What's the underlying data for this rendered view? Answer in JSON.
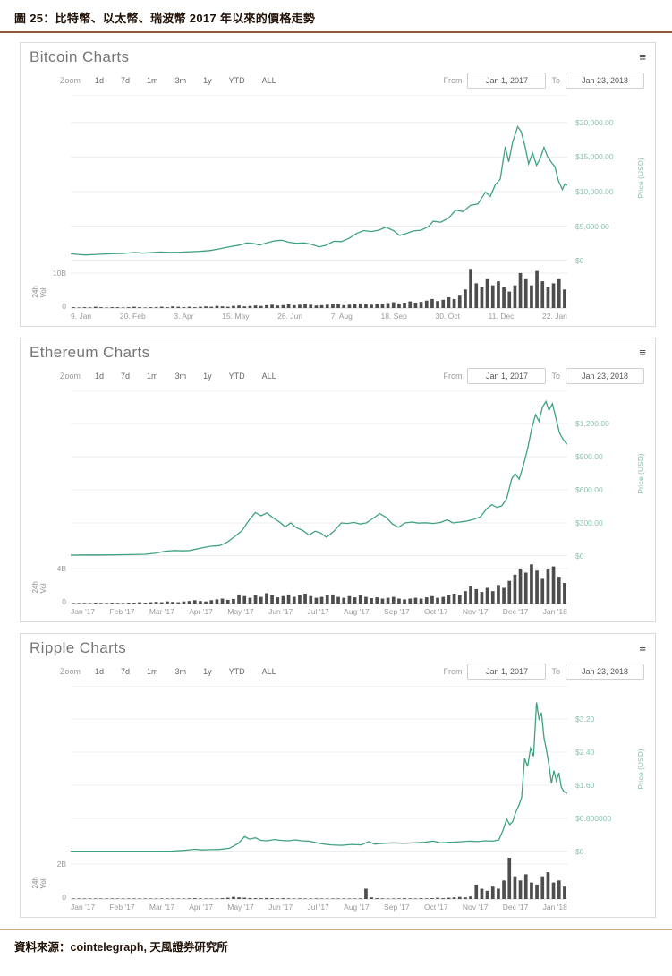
{
  "page": {
    "title": "圖 25：比特幣、以太幣、瑞波幣 2017 年以來的價格走勢",
    "source": "資料來源：cointelegraph, 天風證券研究所"
  },
  "toolbar": {
    "zoom_label": "Zoom",
    "zoom_buttons": [
      "1d",
      "7d",
      "1m",
      "3m",
      "1y",
      "YTD",
      "ALL"
    ],
    "from_label": "From",
    "to_label": "To",
    "from_value": "Jan 1, 2017",
    "to_value": "Jan 23, 2018",
    "menu_icon": "≡"
  },
  "colors": {
    "line": "#3fa184",
    "axis_label": "#8ac2ad",
    "volume_bar": "#4d4d4d",
    "grid": "#ececec",
    "baseline": "#d8d8d8"
  },
  "chart_data": [
    {
      "type": "line",
      "title": "Bitcoin Charts",
      "ylabel": "Price (USD)",
      "vol_label": "24h Vol",
      "x_range": [
        "Jan 1, 2017",
        "Jan 23, 2018"
      ],
      "y_axis_max": 24000,
      "y_ticks": [
        {
          "label": "$20,000.00",
          "value": 20000
        },
        {
          "label": "$15,000.00",
          "value": 15000
        },
        {
          "label": "$10,000.00",
          "value": 10000
        },
        {
          "label": "$5,000.00",
          "value": 5000
        },
        {
          "label": "$0",
          "value": 0
        }
      ],
      "x_labels": [
        "9. Jan",
        "20. Feb",
        "3. Apr",
        "15. May",
        "26. Jun",
        "7. Aug",
        "18. Sep",
        "30. Oct",
        "11. Dec",
        "22. Jan"
      ],
      "price_points": [
        [
          0,
          1000
        ],
        [
          0.015,
          900
        ],
        [
          0.03,
          820
        ],
        [
          0.05,
          900
        ],
        [
          0.07,
          960
        ],
        [
          0.09,
          1010
        ],
        [
          0.11,
          1060
        ],
        [
          0.13,
          1180
        ],
        [
          0.145,
          1080
        ],
        [
          0.16,
          1150
        ],
        [
          0.18,
          1250
        ],
        [
          0.2,
          1180
        ],
        [
          0.22,
          1210
        ],
        [
          0.24,
          1280
        ],
        [
          0.26,
          1330
        ],
        [
          0.28,
          1450
        ],
        [
          0.3,
          1700
        ],
        [
          0.32,
          2000
        ],
        [
          0.34,
          2250
        ],
        [
          0.355,
          2550
        ],
        [
          0.37,
          2450
        ],
        [
          0.38,
          2250
        ],
        [
          0.395,
          2550
        ],
        [
          0.41,
          2850
        ],
        [
          0.425,
          2950
        ],
        [
          0.44,
          2650
        ],
        [
          0.455,
          2500
        ],
        [
          0.47,
          2550
        ],
        [
          0.485,
          2350
        ],
        [
          0.5,
          1980
        ],
        [
          0.515,
          2250
        ],
        [
          0.53,
          2800
        ],
        [
          0.545,
          2750
        ],
        [
          0.56,
          3200
        ],
        [
          0.575,
          3900
        ],
        [
          0.59,
          4350
        ],
        [
          0.605,
          4200
        ],
        [
          0.62,
          4400
        ],
        [
          0.635,
          4850
        ],
        [
          0.65,
          4350
        ],
        [
          0.662,
          3650
        ],
        [
          0.675,
          3900
        ],
        [
          0.69,
          4300
        ],
        [
          0.705,
          4400
        ],
        [
          0.72,
          4900
        ],
        [
          0.73,
          5700
        ],
        [
          0.745,
          5550
        ],
        [
          0.76,
          6100
        ],
        [
          0.775,
          7300
        ],
        [
          0.79,
          7100
        ],
        [
          0.805,
          8000
        ],
        [
          0.82,
          8200
        ],
        [
          0.835,
          9900
        ],
        [
          0.845,
          9300
        ],
        [
          0.855,
          11000
        ],
        [
          0.865,
          11800
        ],
        [
          0.875,
          16500
        ],
        [
          0.882,
          14300
        ],
        [
          0.89,
          17200
        ],
        [
          0.9,
          19400
        ],
        [
          0.907,
          18700
        ],
        [
          0.915,
          16500
        ],
        [
          0.922,
          14000
        ],
        [
          0.93,
          15600
        ],
        [
          0.938,
          13800
        ],
        [
          0.945,
          14700
        ],
        [
          0.953,
          16400
        ],
        [
          0.96,
          15100
        ],
        [
          0.968,
          14200
        ],
        [
          0.975,
          13600
        ],
        [
          0.982,
          11600
        ],
        [
          0.99,
          10300
        ],
        [
          0.995,
          11100
        ],
        [
          1,
          10900
        ]
      ],
      "volume_axis": {
        "tick_label": "10B",
        "zero_label": "0"
      },
      "volume_values": [
        0.02,
        0.01,
        0.02,
        0.015,
        0.03,
        0.02,
        0.01,
        0.02,
        0.02,
        0.01,
        0.02,
        0.03,
        0.02,
        0.01,
        0.02,
        0.02,
        0.03,
        0.02,
        0.04,
        0.03,
        0.02,
        0.03,
        0.02,
        0.03,
        0.04,
        0.03,
        0.05,
        0.04,
        0.03,
        0.05,
        0.06,
        0.04,
        0.05,
        0.06,
        0.05,
        0.07,
        0.08,
        0.06,
        0.07,
        0.09,
        0.07,
        0.08,
        0.1,
        0.08,
        0.06,
        0.07,
        0.08,
        0.1,
        0.09,
        0.07,
        0.08,
        0.09,
        0.11,
        0.09,
        0.08,
        0.1,
        0.1,
        0.12,
        0.14,
        0.11,
        0.13,
        0.16,
        0.13,
        0.15,
        0.18,
        0.22,
        0.17,
        0.2,
        0.26,
        0.22,
        0.3,
        0.45,
        0.95,
        0.6,
        0.5,
        0.7,
        0.55,
        0.65,
        0.5,
        0.4,
        0.55,
        0.85,
        0.7,
        0.55,
        0.9,
        0.65,
        0.5,
        0.6,
        0.7,
        0.45
      ]
    },
    {
      "type": "line",
      "title": "Ethereum Charts",
      "ylabel": "Price (USD)",
      "vol_label": "24h Vol",
      "x_range": [
        "Jan 1, 2017",
        "Jan 23, 2018"
      ],
      "y_axis_max": 1500,
      "y_ticks": [
        {
          "label": "$1,200.00",
          "value": 1200
        },
        {
          "label": "$900.00",
          "value": 900
        },
        {
          "label": "$600.00",
          "value": 600
        },
        {
          "label": "$300.00",
          "value": 300
        },
        {
          "label": "$0",
          "value": 0
        }
      ],
      "x_labels": [
        "Jan '17",
        "Feb '17",
        "Mar '17",
        "Apr '17",
        "May '17",
        "Jun '17",
        "Jul '17",
        "Aug '17",
        "Sep '17",
        "Oct '17",
        "Nov '17",
        "Dec '17",
        "Jan '18"
      ],
      "price_points": [
        [
          0,
          8
        ],
        [
          0.03,
          10
        ],
        [
          0.06,
          10
        ],
        [
          0.09,
          11
        ],
        [
          0.12,
          13
        ],
        [
          0.15,
          16
        ],
        [
          0.17,
          25
        ],
        [
          0.19,
          44
        ],
        [
          0.21,
          50
        ],
        [
          0.225,
          47
        ],
        [
          0.24,
          50
        ],
        [
          0.26,
          70
        ],
        [
          0.28,
          88
        ],
        [
          0.3,
          95
        ],
        [
          0.315,
          125
        ],
        [
          0.33,
          175
        ],
        [
          0.345,
          230
        ],
        [
          0.36,
          330
        ],
        [
          0.372,
          395
        ],
        [
          0.383,
          365
        ],
        [
          0.395,
          390
        ],
        [
          0.408,
          345
        ],
        [
          0.42,
          310
        ],
        [
          0.432,
          265
        ],
        [
          0.443,
          300
        ],
        [
          0.455,
          255
        ],
        [
          0.468,
          230
        ],
        [
          0.48,
          190
        ],
        [
          0.492,
          225
        ],
        [
          0.503,
          210
        ],
        [
          0.515,
          170
        ],
        [
          0.53,
          225
        ],
        [
          0.545,
          300
        ],
        [
          0.558,
          295
        ],
        [
          0.57,
          305
        ],
        [
          0.583,
          290
        ],
        [
          0.595,
          300
        ],
        [
          0.61,
          345
        ],
        [
          0.622,
          385
        ],
        [
          0.635,
          350
        ],
        [
          0.648,
          290
        ],
        [
          0.66,
          260
        ],
        [
          0.673,
          300
        ],
        [
          0.688,
          308
        ],
        [
          0.7,
          298
        ],
        [
          0.715,
          302
        ],
        [
          0.73,
          295
        ],
        [
          0.745,
          305
        ],
        [
          0.758,
          328
        ],
        [
          0.77,
          300
        ],
        [
          0.783,
          308
        ],
        [
          0.795,
          315
        ],
        [
          0.81,
          330
        ],
        [
          0.825,
          355
        ],
        [
          0.838,
          430
        ],
        [
          0.848,
          465
        ],
        [
          0.858,
          440
        ],
        [
          0.868,
          455
        ],
        [
          0.878,
          520
        ],
        [
          0.888,
          700
        ],
        [
          0.895,
          745
        ],
        [
          0.903,
          695
        ],
        [
          0.912,
          830
        ],
        [
          0.92,
          970
        ],
        [
          0.928,
          1150
        ],
        [
          0.936,
          1280
        ],
        [
          0.943,
          1220
        ],
        [
          0.95,
          1350
        ],
        [
          0.957,
          1400
        ],
        [
          0.963,
          1320
        ],
        [
          0.97,
          1380
        ],
        [
          0.977,
          1250
        ],
        [
          0.984,
          1120
        ],
        [
          0.991,
          1060
        ],
        [
          1,
          1010
        ]
      ],
      "volume_axis": {
        "tick_label": "4B",
        "zero_label": "0"
      },
      "volume_values": [
        0.01,
        0.01,
        0.015,
        0.01,
        0.02,
        0.015,
        0.01,
        0.02,
        0.015,
        0.01,
        0.02,
        0.02,
        0.03,
        0.02,
        0.03,
        0.04,
        0.03,
        0.05,
        0.04,
        0.03,
        0.05,
        0.06,
        0.08,
        0.06,
        0.05,
        0.08,
        0.1,
        0.12,
        0.09,
        0.11,
        0.22,
        0.18,
        0.14,
        0.2,
        0.16,
        0.25,
        0.2,
        0.15,
        0.18,
        0.22,
        0.16,
        0.2,
        0.24,
        0.18,
        0.14,
        0.16,
        0.2,
        0.22,
        0.16,
        0.14,
        0.18,
        0.15,
        0.2,
        0.16,
        0.13,
        0.15,
        0.12,
        0.14,
        0.16,
        0.12,
        0.1,
        0.12,
        0.14,
        0.12,
        0.15,
        0.18,
        0.14,
        0.16,
        0.2,
        0.24,
        0.2,
        0.3,
        0.42,
        0.35,
        0.28,
        0.38,
        0.3,
        0.45,
        0.38,
        0.55,
        0.7,
        0.85,
        0.75,
        0.95,
        0.8,
        0.6,
        0.85,
        0.9,
        0.65,
        0.5
      ]
    },
    {
      "type": "line",
      "title": "Ripple Charts",
      "ylabel": "Price (USD)",
      "vol_label": "24h Vol",
      "x_range": [
        "Jan 1, 2017",
        "Jan 23, 2018"
      ],
      "y_axis_max": 4.0,
      "y_ticks": [
        {
          "label": "$3.20",
          "value": 3.2
        },
        {
          "label": "$2.40",
          "value": 2.4
        },
        {
          "label": "$1.60",
          "value": 1.6
        },
        {
          "label": "$0.800000",
          "value": 0.8
        },
        {
          "label": "$0",
          "value": 0
        }
      ],
      "x_labels": [
        "Jan '17",
        "Feb '17",
        "Mar '17",
        "Apr '17",
        "May '17",
        "Jun '17",
        "Jul '17",
        "Aug '17",
        "Sep '17",
        "Oct '17",
        "Nov '17",
        "Dec '17",
        "Jan '18"
      ],
      "price_points": [
        [
          0,
          0.006
        ],
        [
          0.05,
          0.006
        ],
        [
          0.1,
          0.006
        ],
        [
          0.15,
          0.007
        ],
        [
          0.2,
          0.008
        ],
        [
          0.23,
          0.03
        ],
        [
          0.25,
          0.055
        ],
        [
          0.265,
          0.04
        ],
        [
          0.28,
          0.045
        ],
        [
          0.3,
          0.05
        ],
        [
          0.32,
          0.08
        ],
        [
          0.338,
          0.2
        ],
        [
          0.35,
          0.36
        ],
        [
          0.36,
          0.3
        ],
        [
          0.372,
          0.33
        ],
        [
          0.383,
          0.27
        ],
        [
          0.395,
          0.26
        ],
        [
          0.41,
          0.29
        ],
        [
          0.423,
          0.27
        ],
        [
          0.438,
          0.26
        ],
        [
          0.452,
          0.28
        ],
        [
          0.465,
          0.26
        ],
        [
          0.48,
          0.25
        ],
        [
          0.495,
          0.21
        ],
        [
          0.51,
          0.18
        ],
        [
          0.525,
          0.16
        ],
        [
          0.545,
          0.15
        ],
        [
          0.565,
          0.17
        ],
        [
          0.585,
          0.16
        ],
        [
          0.6,
          0.24
        ],
        [
          0.612,
          0.18
        ],
        [
          0.63,
          0.2
        ],
        [
          0.65,
          0.21
        ],
        [
          0.67,
          0.2
        ],
        [
          0.69,
          0.21
        ],
        [
          0.71,
          0.22
        ],
        [
          0.73,
          0.25
        ],
        [
          0.745,
          0.21
        ],
        [
          0.76,
          0.22
        ],
        [
          0.775,
          0.23
        ],
        [
          0.79,
          0.24
        ],
        [
          0.805,
          0.25
        ],
        [
          0.82,
          0.24
        ],
        [
          0.835,
          0.26
        ],
        [
          0.85,
          0.25
        ],
        [
          0.862,
          0.28
        ],
        [
          0.87,
          0.5
        ],
        [
          0.878,
          0.78
        ],
        [
          0.884,
          0.65
        ],
        [
          0.89,
          0.72
        ],
        [
          0.896,
          0.95
        ],
        [
          0.902,
          1.1
        ],
        [
          0.908,
          1.3
        ],
        [
          0.914,
          2.25
        ],
        [
          0.92,
          2.05
        ],
        [
          0.926,
          2.5
        ],
        [
          0.932,
          2.3
        ],
        [
          0.938,
          3.6
        ],
        [
          0.943,
          3.2
        ],
        [
          0.948,
          3.35
        ],
        [
          0.953,
          2.75
        ],
        [
          0.958,
          2.45
        ],
        [
          0.963,
          2.1
        ],
        [
          0.968,
          1.65
        ],
        [
          0.973,
          1.95
        ],
        [
          0.978,
          1.7
        ],
        [
          0.983,
          1.9
        ],
        [
          0.988,
          1.55
        ],
        [
          0.993,
          1.45
        ],
        [
          1,
          1.4
        ]
      ],
      "volume_axis": {
        "tick_label": "2B",
        "zero_label": "0"
      },
      "volume_values": [
        0.005,
        0.005,
        0.005,
        0.005,
        0.005,
        0.005,
        0.005,
        0.005,
        0.005,
        0.005,
        0.005,
        0.005,
        0.005,
        0.005,
        0.005,
        0.005,
        0.005,
        0.005,
        0.01,
        0.01,
        0.01,
        0.015,
        0.02,
        0.015,
        0.01,
        0.01,
        0.015,
        0.02,
        0.03,
        0.05,
        0.04,
        0.03,
        0.025,
        0.02,
        0.02,
        0.025,
        0.02,
        0.015,
        0.02,
        0.015,
        0.01,
        0.015,
        0.01,
        0.01,
        0.015,
        0.01,
        0.01,
        0.01,
        0.01,
        0.01,
        0.01,
        0.01,
        0.015,
        0.25,
        0.04,
        0.02,
        0.015,
        0.01,
        0.01,
        0.015,
        0.02,
        0.015,
        0.01,
        0.02,
        0.015,
        0.02,
        0.03,
        0.02,
        0.03,
        0.04,
        0.05,
        0.04,
        0.06,
        0.35,
        0.25,
        0.2,
        0.3,
        0.25,
        0.45,
        1.0,
        0.55,
        0.45,
        0.6,
        0.4,
        0.35,
        0.55,
        0.65,
        0.4,
        0.45,
        0.3
      ]
    }
  ]
}
